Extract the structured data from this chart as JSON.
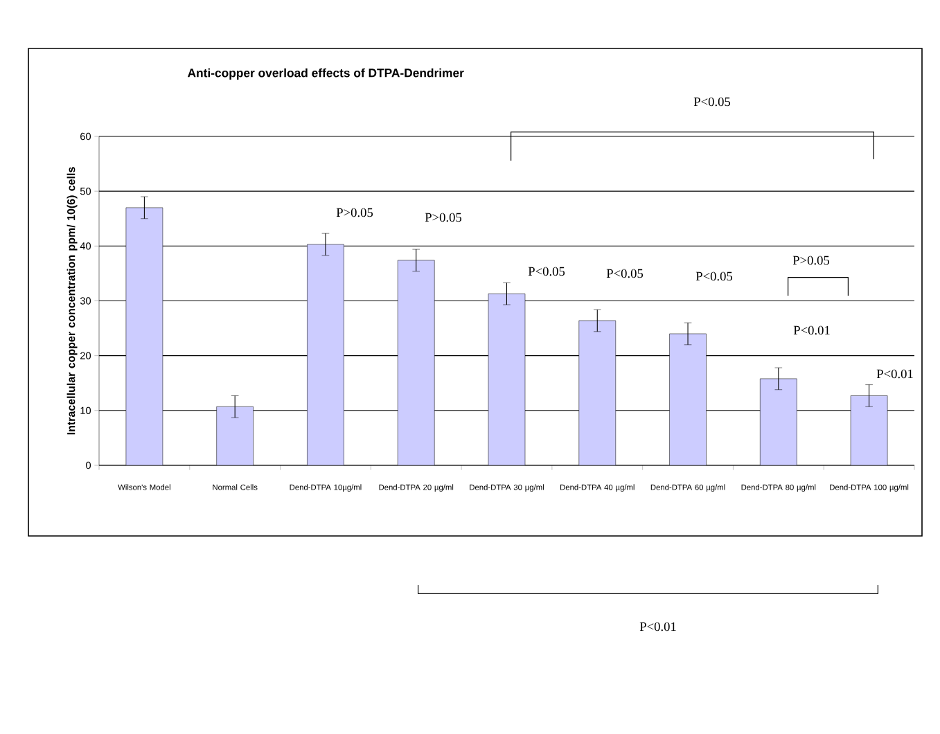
{
  "chart_data": {
    "type": "bar",
    "title": "Anti-copper overload effects of DTPA-Dendrimer",
    "ylabel": "Intracellular copper concentration ppm/ 10(6) cells",
    "categories": [
      "Wilson's Model",
      "Normal Cells",
      "Dend-DTPA 10µg/ml",
      "Dend-DTPA 20 µg/ml",
      "Dend-DTPA 30 µg/ml",
      "Dend-DTPA 40 µg/ml",
      "Dend-DTPA 60 µg/ml",
      "Dend-DTPA 80 µg/ml",
      "Dend-DTPA 100 µg/ml"
    ],
    "values": [
      47,
      10.7,
      40.3,
      37.4,
      31.3,
      26.4,
      24,
      15.8,
      12.7
    ],
    "errors": [
      2,
      2,
      2,
      2,
      2,
      2,
      2,
      2,
      2
    ],
    "color": "#ccccff",
    "ylim": [
      0,
      60
    ],
    "yticks": [
      0,
      10,
      20,
      30,
      40,
      50,
      60
    ],
    "grid": "y",
    "annotations": [
      "P>0.05",
      "P>0.05",
      "P<0.05",
      "P<0.05",
      "P<0.05",
      "P>0.05",
      "P<0.01",
      "P<0.01",
      "P<0.05",
      "P<0.01"
    ]
  }
}
